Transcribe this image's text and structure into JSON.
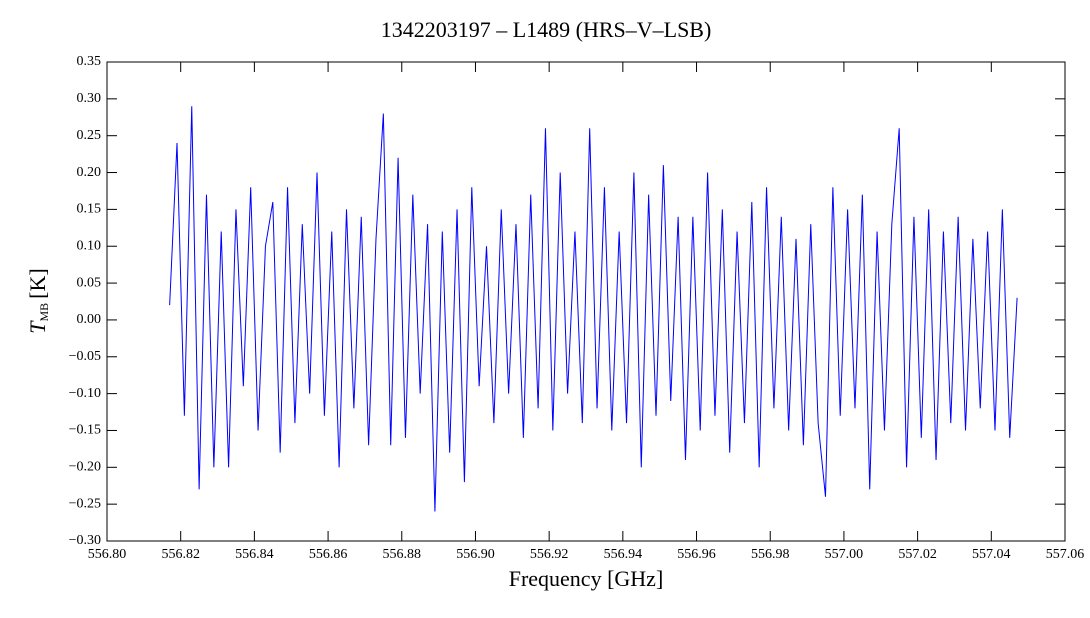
{
  "chart_data": {
    "type": "line",
    "title": "1342203197 – L1489 (HRS–V–LSB)",
    "xlabel": "Frequency [GHz]",
    "ylabel": {
      "symbol": "T",
      "subscript": "MB",
      "unit": "[K]"
    },
    "xlim": [
      556.8,
      557.06
    ],
    "ylim": [
      -0.3,
      0.35
    ],
    "xticks": [
      {
        "value": 556.8,
        "label": "556.80"
      },
      {
        "value": 556.82,
        "label": "556.82"
      },
      {
        "value": 556.84,
        "label": "556.84"
      },
      {
        "value": 556.86,
        "label": "556.86"
      },
      {
        "value": 556.88,
        "label": "556.88"
      },
      {
        "value": 556.9,
        "label": "556.90"
      },
      {
        "value": 556.92,
        "label": "556.92"
      },
      {
        "value": 556.94,
        "label": "556.94"
      },
      {
        "value": 556.96,
        "label": "556.96"
      },
      {
        "value": 556.98,
        "label": "556.98"
      },
      {
        "value": 557.0,
        "label": "557.00"
      },
      {
        "value": 557.02,
        "label": "557.02"
      },
      {
        "value": 557.04,
        "label": "557.04"
      },
      {
        "value": 557.06,
        "label": "557.06"
      }
    ],
    "yticks": [
      {
        "value": -0.3,
        "label": "−0.30"
      },
      {
        "value": -0.25,
        "label": "−0.25"
      },
      {
        "value": -0.2,
        "label": "−0.20"
      },
      {
        "value": -0.15,
        "label": "−0.15"
      },
      {
        "value": -0.1,
        "label": "−0.10"
      },
      {
        "value": -0.05,
        "label": "−0.05"
      },
      {
        "value": 0,
        "label": "0.00"
      },
      0.05,
      {
        "value": 0.1,
        "label": "0.10"
      },
      0.15,
      {
        "value": 0.2,
        "label": "0.20"
      },
      0.25,
      {
        "value": 0.3,
        "label": "0.30"
      },
      0.35
    ],
    "series": [
      {
        "name": "HRS-V-LSB",
        "color": "#0000ff",
        "x": [
          556.817,
          556.819,
          556.821,
          556.823,
          556.825,
          556.827,
          556.829,
          556.831,
          556.833,
          556.835,
          556.837,
          556.839,
          556.841,
          556.843,
          556.845,
          556.847,
          556.849,
          556.851,
          556.853,
          556.855,
          556.857,
          556.859,
          556.861,
          556.863,
          556.865,
          556.867,
          556.869,
          556.871,
          556.873,
          556.875,
          556.877,
          556.879,
          556.881,
          556.883,
          556.885,
          556.887,
          556.889,
          556.891,
          556.893,
          556.895,
          556.897,
          556.899,
          556.901,
          556.903,
          556.905,
          556.907,
          556.909,
          556.911,
          556.913,
          556.915,
          556.917,
          556.919,
          556.921,
          556.923,
          556.925,
          556.927,
          556.929,
          556.931,
          556.933,
          556.935,
          556.937,
          556.939,
          556.941,
          556.943,
          556.945,
          556.947,
          556.949,
          556.951,
          556.953,
          556.955,
          556.957,
          556.959,
          556.961,
          556.963,
          556.965,
          556.967,
          556.969,
          556.971,
          556.973,
          556.975,
          556.977,
          556.979,
          556.981,
          556.983,
          556.985,
          556.987,
          556.989,
          556.991,
          556.993,
          556.995,
          556.997,
          556.999,
          557.001,
          557.003,
          557.005,
          557.007,
          557.009,
          557.011,
          557.013,
          557.015,
          557.017,
          557.019,
          557.021,
          557.023,
          557.025,
          557.027,
          557.029,
          557.031,
          557.033,
          557.035,
          557.037,
          557.039,
          557.041,
          557.043,
          557.045,
          557.047
        ],
        "values": [
          0.02,
          0.24,
          -0.13,
          0.29,
          -0.23,
          0.17,
          -0.2,
          0.12,
          -0.2,
          0.15,
          -0.09,
          0.18,
          -0.15,
          0.1,
          0.16,
          -0.18,
          0.18,
          -0.14,
          0.13,
          -0.1,
          0.2,
          -0.13,
          0.12,
          -0.2,
          0.15,
          -0.12,
          0.14,
          -0.17,
          0.11,
          0.28,
          -0.17,
          0.22,
          -0.16,
          0.17,
          -0.1,
          0.13,
          -0.26,
          0.12,
          -0.18,
          0.15,
          -0.22,
          0.18,
          -0.09,
          0.1,
          -0.14,
          0.15,
          -0.1,
          0.13,
          -0.16,
          0.17,
          -0.12,
          0.26,
          -0.15,
          0.2,
          -0.1,
          0.12,
          -0.14,
          0.26,
          -0.12,
          0.18,
          -0.15,
          0.12,
          -0.14,
          0.2,
          -0.2,
          0.17,
          -0.13,
          0.21,
          -0.11,
          0.14,
          -0.19,
          0.14,
          -0.15,
          0.2,
          -0.13,
          0.15,
          -0.18,
          0.12,
          -0.14,
          0.16,
          -0.2,
          0.18,
          -0.12,
          0.14,
          -0.15,
          0.11,
          -0.17,
          0.13,
          -0.14,
          -0.24,
          0.18,
          -0.13,
          0.15,
          -0.12,
          0.17,
          -0.23,
          0.12,
          -0.15,
          0.13,
          0.26,
          -0.2,
          0.14,
          -0.16,
          0.15,
          -0.19,
          0.12,
          -0.14,
          0.14,
          -0.15,
          0.11,
          -0.12,
          0.12,
          -0.15,
          0.15,
          -0.16,
          0.03
        ]
      }
    ]
  }
}
